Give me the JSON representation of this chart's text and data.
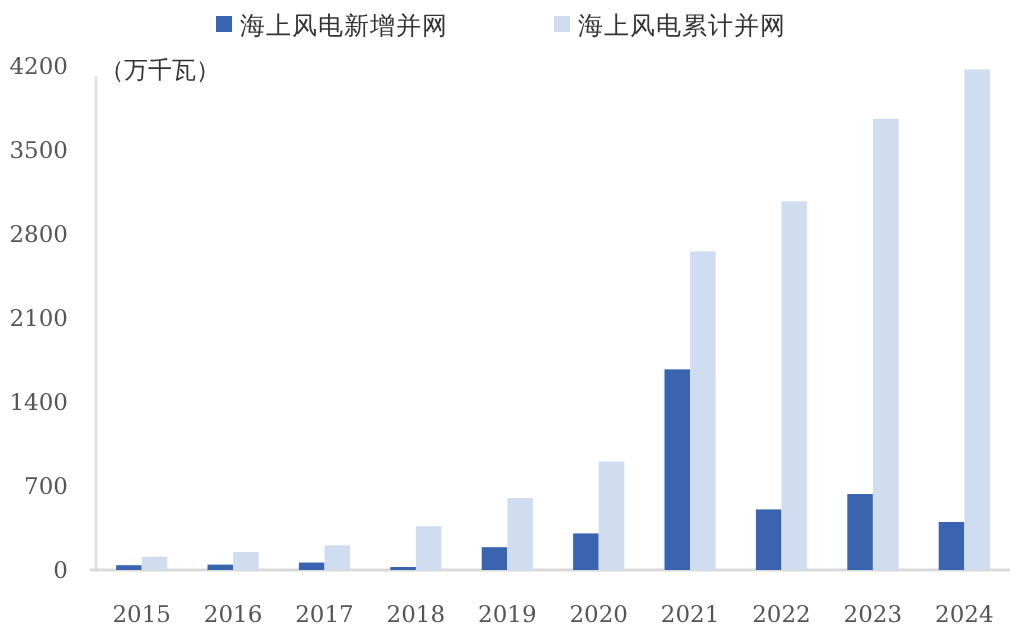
{
  "chart_data": {
    "type": "bar",
    "ylabel": "（万千瓦）",
    "categories": [
      "2015",
      "2016",
      "2017",
      "2018",
      "2019",
      "2020",
      "2021",
      "2022",
      "2023",
      "2024"
    ],
    "series": [
      {
        "name": "海上风电新增并网",
        "color": "#3a64b0",
        "values": [
          40,
          45,
          62,
          25,
          190,
          305,
          1672,
          505,
          633,
          400
        ]
      },
      {
        "name": "海上风电累计并网",
        "color": "#d0ddf0",
        "values": [
          111,
          150,
          206,
          365,
          600,
          905,
          2655,
          3072,
          3760,
          4172
        ]
      }
    ],
    "ylim": [
      0,
      4200
    ],
    "yticks": [
      0,
      700,
      1400,
      2100,
      2800,
      3500,
      4200
    ],
    "grid": false,
    "legend": "top"
  }
}
